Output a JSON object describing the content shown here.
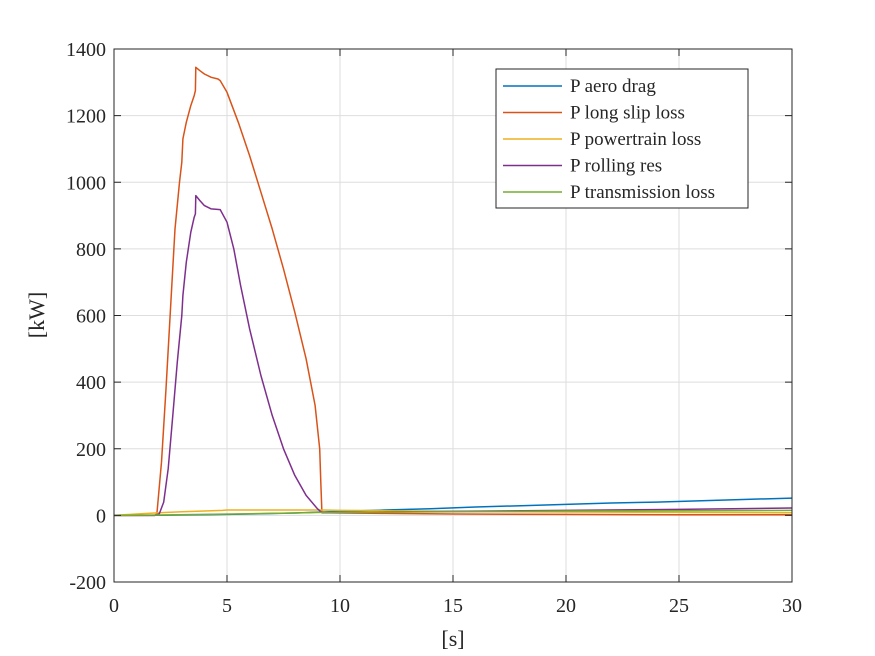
{
  "chart_data": {
    "type": "line",
    "title": "",
    "xlabel": "[s]",
    "ylabel": "[kW]",
    "xlim": [
      0,
      30
    ],
    "ylim": [
      -200,
      1400
    ],
    "xticks": [
      0,
      5,
      10,
      15,
      20,
      25,
      30
    ],
    "yticks": [
      -200,
      0,
      200,
      400,
      600,
      800,
      1000,
      1200,
      1400
    ],
    "grid": true,
    "legend_position": "top-right",
    "series": [
      {
        "name": "P aero drag",
        "color": "#0072BD",
        "points": [
          [
            0,
            0
          ],
          [
            2,
            0.5
          ],
          [
            4,
            2
          ],
          [
            6,
            4
          ],
          [
            8,
            7
          ],
          [
            9.2,
            10
          ],
          [
            10,
            12
          ],
          [
            12,
            16
          ],
          [
            14,
            20
          ],
          [
            16,
            25
          ],
          [
            18,
            29
          ],
          [
            20,
            33
          ],
          [
            22,
            37
          ],
          [
            24,
            40
          ],
          [
            26,
            44
          ],
          [
            28,
            48
          ],
          [
            30,
            52
          ]
        ]
      },
      {
        "name": "P long slip loss",
        "color": "#D95319",
        "points": [
          [
            0,
            0
          ],
          [
            1.8,
            0
          ],
          [
            1.9,
            5
          ],
          [
            2.1,
            160
          ],
          [
            2.3,
            380
          ],
          [
            2.5,
            620
          ],
          [
            2.7,
            860
          ],
          [
            2.9,
            1000
          ],
          [
            3.0,
            1060
          ],
          [
            3.05,
            1130
          ],
          [
            3.2,
            1180
          ],
          [
            3.4,
            1230
          ],
          [
            3.55,
            1260
          ],
          [
            3.6,
            1275
          ],
          [
            3.62,
            1345
          ],
          [
            3.8,
            1335
          ],
          [
            4.0,
            1325
          ],
          [
            4.3,
            1315
          ],
          [
            4.6,
            1310
          ],
          [
            4.7,
            1305
          ],
          [
            5.0,
            1270
          ],
          [
            5.5,
            1180
          ],
          [
            6.0,
            1080
          ],
          [
            6.5,
            970
          ],
          [
            7.0,
            860
          ],
          [
            7.5,
            740
          ],
          [
            8.0,
            610
          ],
          [
            8.5,
            470
          ],
          [
            8.9,
            330
          ],
          [
            9.1,
            200
          ],
          [
            9.15,
            100
          ],
          [
            9.2,
            10
          ],
          [
            9.5,
            8
          ],
          [
            12,
            6
          ],
          [
            15,
            4
          ],
          [
            20,
            3
          ],
          [
            25,
            2
          ],
          [
            30,
            2
          ]
        ]
      },
      {
        "name": "P powertrain loss",
        "color": "#EDB120",
        "points": [
          [
            0,
            0
          ],
          [
            1,
            4
          ],
          [
            2,
            8
          ],
          [
            3,
            11
          ],
          [
            4,
            13
          ],
          [
            4.8,
            15
          ],
          [
            5,
            16
          ],
          [
            6,
            16
          ],
          [
            7,
            16
          ],
          [
            8,
            16
          ],
          [
            9,
            16
          ],
          [
            9.2,
            16
          ],
          [
            10,
            15
          ],
          [
            12,
            14
          ],
          [
            15,
            12
          ],
          [
            20,
            10
          ],
          [
            25,
            9
          ],
          [
            30,
            8
          ]
        ]
      },
      {
        "name": "P rolling res",
        "color": "#7E2F8E",
        "points": [
          [
            0,
            0
          ],
          [
            1.8,
            0
          ],
          [
            2.0,
            4
          ],
          [
            2.2,
            40
          ],
          [
            2.4,
            140
          ],
          [
            2.6,
            300
          ],
          [
            2.8,
            460
          ],
          [
            3.0,
            600
          ],
          [
            3.05,
            660
          ],
          [
            3.2,
            760
          ],
          [
            3.4,
            850
          ],
          [
            3.55,
            895
          ],
          [
            3.6,
            905
          ],
          [
            3.62,
            960
          ],
          [
            3.8,
            945
          ],
          [
            4.0,
            930
          ],
          [
            4.3,
            920
          ],
          [
            4.7,
            918
          ],
          [
            5.0,
            880
          ],
          [
            5.3,
            800
          ],
          [
            5.6,
            690
          ],
          [
            6.0,
            560
          ],
          [
            6.5,
            420
          ],
          [
            7.0,
            300
          ],
          [
            7.5,
            200
          ],
          [
            8.0,
            120
          ],
          [
            8.5,
            60
          ],
          [
            9.0,
            20
          ],
          [
            9.2,
            8
          ],
          [
            10,
            8
          ],
          [
            12,
            10
          ],
          [
            15,
            12
          ],
          [
            20,
            15
          ],
          [
            25,
            18
          ],
          [
            30,
            22
          ]
        ]
      },
      {
        "name": "P transmission loss",
        "color": "#77AC30",
        "points": [
          [
            0,
            0
          ],
          [
            2,
            1
          ],
          [
            4,
            3
          ],
          [
            6,
            5
          ],
          [
            8,
            7
          ],
          [
            9.2,
            9
          ],
          [
            10,
            9
          ],
          [
            15,
            11
          ],
          [
            20,
            13
          ],
          [
            25,
            14
          ],
          [
            30,
            15
          ]
        ]
      }
    ]
  }
}
